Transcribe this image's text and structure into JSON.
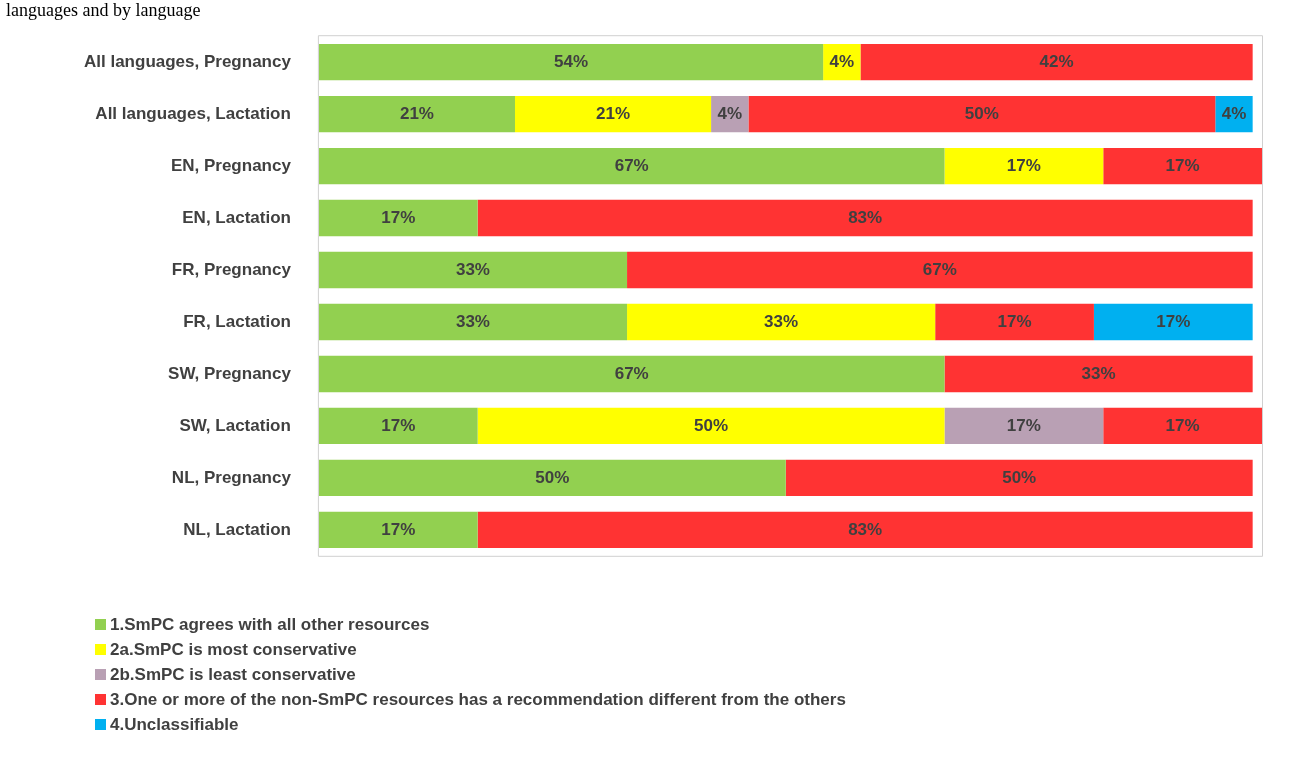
{
  "chart_data": {
    "type": "bar",
    "orientation": "horizontal",
    "stacked": true,
    "legend": "bottom left",
    "title": "languages and by language",
    "categories": [
      "All languages, Pregnancy",
      "All languages, Lactation",
      "EN, Pregnancy",
      "EN, Lactation",
      "FR, Pregnancy",
      "FR, Lactation",
      "SW, Pregnancy",
      "SW, Lactation",
      "NL, Pregnancy",
      "NL, Lactation"
    ],
    "series": [
      {
        "name": "1.SmPC agrees with all other resources",
        "color": "#92d050",
        "values": [
          54,
          21,
          67,
          17,
          33,
          33,
          67,
          17,
          50,
          17
        ],
        "value_labels": [
          "54%",
          "21%",
          "67%",
          "17%",
          "33%",
          "33%",
          "67%",
          "17%",
          "50%",
          "17%"
        ]
      },
      {
        "name": "2a.SmPC is most conservative",
        "color": "#ffff00",
        "values": [
          4,
          21,
          17,
          null,
          null,
          33,
          null,
          50,
          null,
          null
        ],
        "value_labels": [
          "4%",
          "21%",
          "17%",
          null,
          null,
          "33%",
          null,
          "50%",
          null,
          null
        ]
      },
      {
        "name": "2b.SmPC is least conservative",
        "color": "#b9a0b4",
        "values": [
          null,
          4,
          null,
          null,
          null,
          null,
          null,
          17,
          null,
          null
        ],
        "value_labels": [
          null,
          "4%",
          null,
          null,
          null,
          null,
          null,
          "17%",
          null,
          null
        ]
      },
      {
        "name": "3.One or more of the non-SmPC resources has a recommendation different from the others",
        "color": "#ff3333",
        "values": [
          42,
          50,
          17,
          83,
          67,
          17,
          33,
          17,
          50,
          83
        ],
        "value_labels": [
          "42%",
          "50%",
          "17%",
          "83%",
          "67%",
          "17%",
          "33%",
          "17%",
          "50%",
          "83%"
        ]
      },
      {
        "name": "4.Unclassifiable",
        "color": "#00b0f0",
        "values": [
          null,
          4,
          null,
          null,
          null,
          17,
          null,
          null,
          null,
          null
        ],
        "value_labels": [
          null,
          "4%",
          null,
          null,
          null,
          "17%",
          null,
          null,
          null,
          null
        ]
      }
    ]
  }
}
